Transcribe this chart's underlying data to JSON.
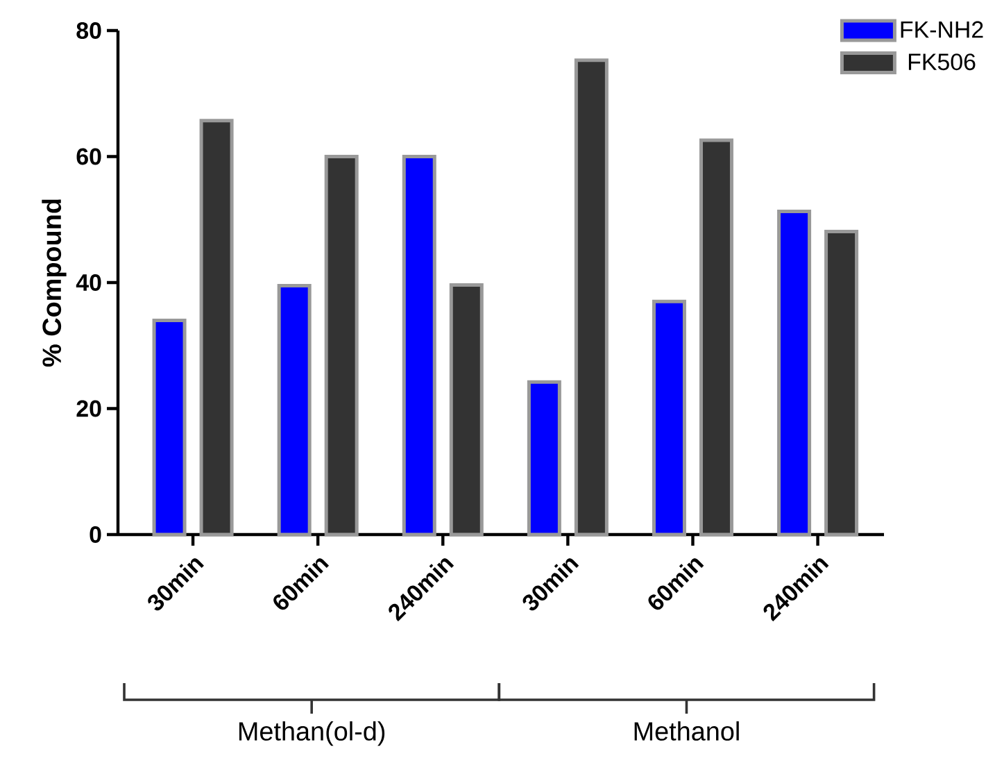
{
  "chart_data": {
    "type": "bar",
    "ylabel": "% Compound",
    "categories": [
      "30min",
      "60min",
      "240min",
      "30min",
      "60min",
      "240min"
    ],
    "series": [
      {
        "name": "FK-NH2",
        "color": "#0000ff",
        "values": [
          34,
          39.5,
          60,
          24.2,
          37,
          51.3
        ]
      },
      {
        "name": "FK506",
        "color": "#333333",
        "values": [
          65.7,
          60,
          39.6,
          75.3,
          62.6,
          48.1
        ]
      }
    ],
    "ylim": [
      0,
      80
    ],
    "yticks": [
      0,
      20,
      40,
      60,
      80
    ],
    "legend": "top right",
    "grid": false,
    "annotations": [
      "Methan(ol-d)",
      "Methanol"
    ]
  }
}
